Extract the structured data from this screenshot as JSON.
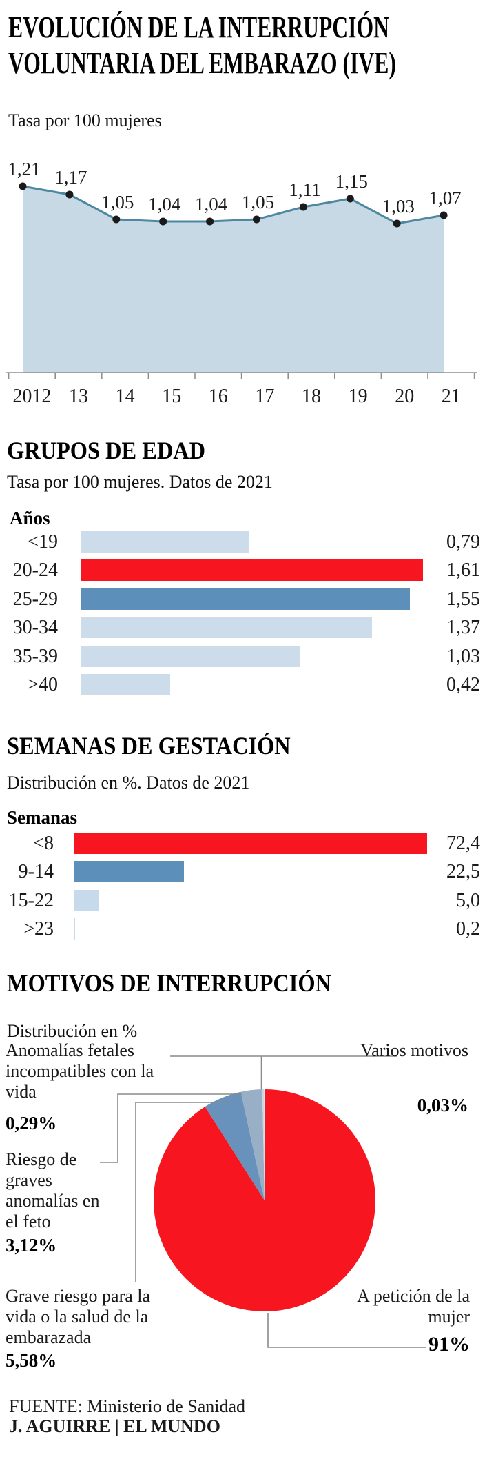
{
  "header": {
    "title_line1": "EVOLUCIÓN DE LA INTERRUPCIÓN",
    "title_line2": "VOLUNTARIA DEL EMBARAZO (IVE)"
  },
  "chart_data": [
    {
      "type": "area",
      "title": "EVOLUCIÓN DE LA INTERRUPCIÓN VOLUNTARIA DEL EMBARAZO (IVE)",
      "subtitle": "Tasa por 100 mujeres",
      "x": [
        "2012",
        "13",
        "14",
        "15",
        "16",
        "17",
        "18",
        "19",
        "20",
        "21"
      ],
      "values": [
        1.21,
        1.17,
        1.05,
        1.04,
        1.04,
        1.05,
        1.11,
        1.15,
        1.03,
        1.07
      ],
      "value_labels": [
        "1,21",
        "1,17",
        "1,05",
        "1,04",
        "1,04",
        "1,05",
        "1,11",
        "1,15",
        "1,03",
        "1,07"
      ],
      "grid": false,
      "legend": "none"
    },
    {
      "type": "bar",
      "orientation": "horizontal",
      "title": "GRUPOS DE EDAD",
      "subtitle": "Tasa por 100 mujeres. Datos de 2021",
      "axis_label": "Años",
      "categories": [
        "<19",
        "20-24",
        "25-29",
        "30-34",
        "35-39",
        ">40"
      ],
      "values": [
        0.79,
        1.61,
        1.55,
        1.37,
        1.03,
        0.42
      ],
      "value_labels": [
        "0,79",
        "1,61",
        "1,55",
        "1,37",
        "1,03",
        "0,42"
      ],
      "bar_colors": [
        "light",
        "red",
        "steel",
        "light",
        "light",
        "light"
      ]
    },
    {
      "type": "bar",
      "orientation": "horizontal",
      "title": "SEMANAS DE GESTACIÓN",
      "subtitle": "Distribución en %. Datos de 2021",
      "axis_label": "Semanas",
      "categories": [
        "<8",
        "9-14",
        "15-22",
        ">23"
      ],
      "values": [
        72.4,
        22.5,
        5.0,
        0.2
      ],
      "value_labels": [
        "72,4",
        "22,5",
        "5,0",
        "0,2"
      ],
      "bar_colors": [
        "red",
        "steel",
        "light2",
        "light2"
      ]
    },
    {
      "type": "pie",
      "title": "MOTIVOS DE INTERRUPCIÓN",
      "subtitle": "Distribución en %",
      "slices": [
        {
          "label": "A petición de la mujer",
          "pct": 91,
          "pct_label": "91%",
          "color": "pie_red"
        },
        {
          "label": "Grave riesgo para la vida o la salud de la embarazada",
          "pct": 5.58,
          "pct_label": "5,58%",
          "color": "pie_steel"
        },
        {
          "label": "Riesgo de graves anomalías en el feto",
          "pct": 3.12,
          "pct_label": "3,12%",
          "color": "pie_grayblue"
        },
        {
          "label": "Anomalías fetales incompatibles con la vida",
          "pct": 0.29,
          "pct_label": "0,29%",
          "color": "pie_pale"
        },
        {
          "label": "Varios motivos",
          "pct": 0.03,
          "pct_label": "0,03%",
          "color": "pie_white"
        }
      ]
    }
  ],
  "colors": {
    "red": "#f7161f",
    "steel": "#5c90ba",
    "light": "#ccdcea",
    "light2": "#c6daec",
    "area_fill": "#c8d9e6",
    "area_line": "#4d87a2",
    "dot": "#1a1a1a",
    "axis": "#8f8f8f",
    "leader": "#8a8a8a",
    "pie_red": "#f7161f",
    "pie_steel": "#6892bb",
    "pie_grayblue": "#98afc6",
    "pie_pale": "#cbd8e3",
    "pie_white": "#ffffff"
  },
  "footer": {
    "source": "FUENTE: Ministerio de Sanidad",
    "credit": "J. AGUIRRE | EL MUNDO"
  }
}
